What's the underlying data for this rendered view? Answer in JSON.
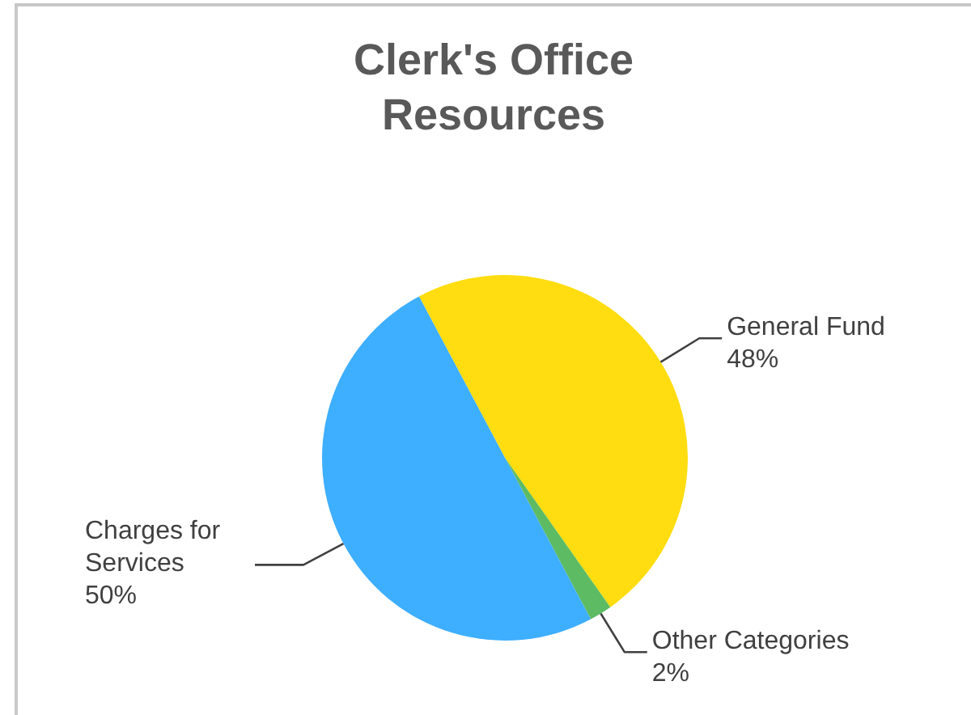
{
  "chart_data": {
    "type": "pie",
    "title": "Clerk's Office Resources",
    "categories": [
      "General Fund",
      "Other Categories",
      "Charges for Services"
    ],
    "values": [
      48,
      2,
      50
    ],
    "colors": [
      "#ffdd11",
      "#5dbb63",
      "#3eaeff"
    ],
    "value_labels": [
      "48%",
      "2%",
      "50%"
    ]
  }
}
